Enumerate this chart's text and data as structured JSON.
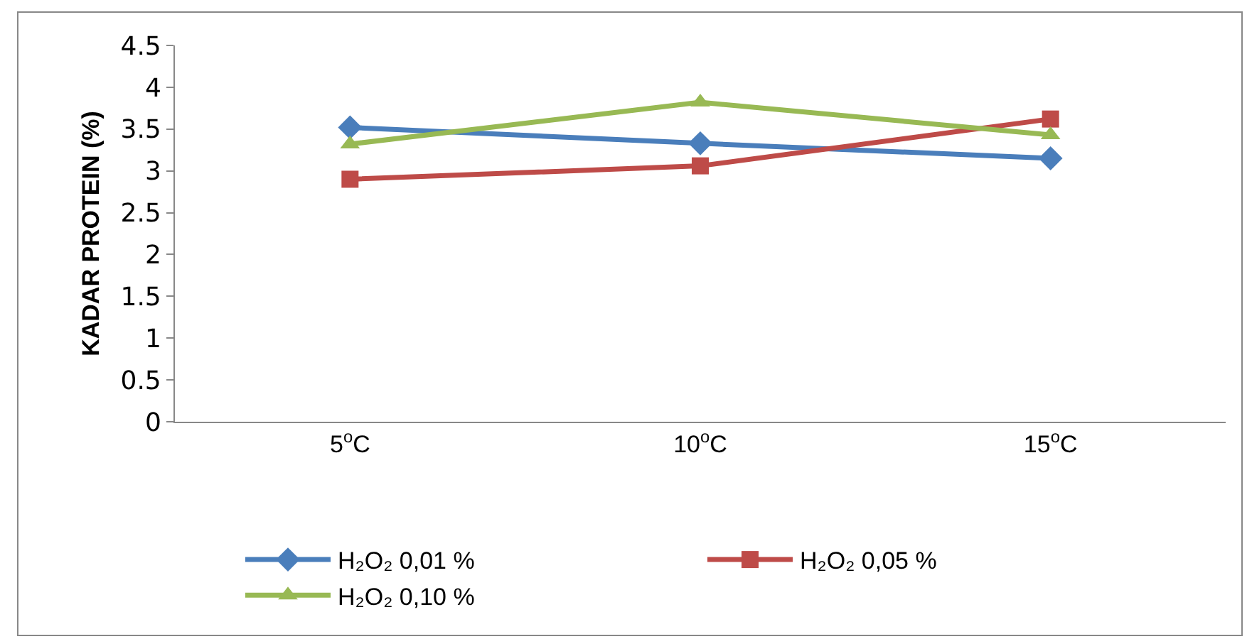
{
  "chart_data": {
    "type": "line",
    "ylabel": "KADAR PROTEIN (%)",
    "categories": [
      "5$^{o}$C",
      "10$^{o}$C",
      "15$^{o}$C"
    ],
    "series": [
      {
        "name": "H₂O₂ 0,01 %",
        "color": "#4a7ebb",
        "marker": "diamond",
        "values": [
          3.52,
          3.33,
          3.15
        ]
      },
      {
        "name": "H₂O₂ 0,05 %",
        "color": "#be4b48",
        "marker": "square",
        "values": [
          2.9,
          3.06,
          3.62
        ]
      },
      {
        "name": "H₂O₂ 0,10 %",
        "color": "#98b954",
        "marker": "triangle",
        "values": [
          3.32,
          3.82,
          3.43
        ]
      }
    ],
    "ylim": [
      0,
      4.5
    ],
    "yticks": [
      0,
      0.5,
      1,
      1.5,
      2,
      2.5,
      3,
      3.5,
      4,
      4.5
    ],
    "grid": false,
    "legend": "bottom",
    "line_style": "solid"
  }
}
